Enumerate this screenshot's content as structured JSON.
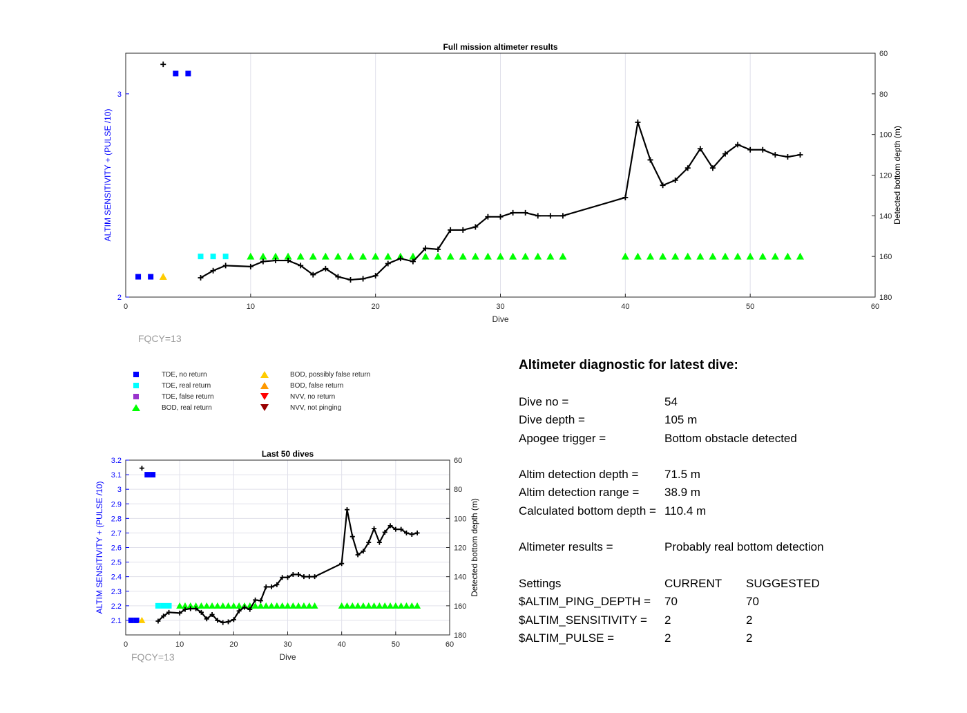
{
  "chart_data": [
    {
      "type": "line",
      "title": "Full mission altimeter results",
      "xlabel": "Dive",
      "ylabel_left": "ALTIM SENSITIVITY + (PULSE /10)",
      "ylabel_right": "Detected bottom depth (m)",
      "xlim": [
        0,
        60
      ],
      "ylim_left": [
        2,
        3.2
      ],
      "ylim_right": [
        60,
        180
      ],
      "right_axis_reversed": true,
      "x_ticks": [
        0,
        10,
        20,
        30,
        40,
        50,
        60
      ],
      "y_left_ticks": [
        2,
        3
      ],
      "y_right_ticks": [
        60,
        80,
        100,
        120,
        140,
        160,
        180
      ],
      "annotation": "FQCY=13",
      "grid": "x",
      "series": [
        {
          "name": "TDE, no return",
          "axis": "left",
          "marker": "square",
          "color": "#0000ff",
          "x": [
            1,
            2,
            4,
            5
          ],
          "y": [
            2.1,
            2.1,
            3.1,
            3.1
          ]
        },
        {
          "name": "TDE, real return",
          "axis": "left",
          "marker": "square",
          "color": "#00ffff",
          "x": [
            6,
            7,
            8
          ],
          "y": [
            2.2,
            2.2,
            2.2
          ]
        },
        {
          "name": "BOD, possibly false return",
          "axis": "left",
          "marker": "triangle-up",
          "color": "#ffcc00",
          "x": [
            3
          ],
          "y": [
            2.1
          ]
        },
        {
          "name": "BOD, real return",
          "axis": "left",
          "marker": "triangle-up",
          "color": "#00ff00",
          "x": [
            10,
            11,
            12,
            13,
            14,
            15,
            16,
            17,
            18,
            19,
            20,
            21,
            22,
            23,
            24,
            25,
            26,
            27,
            28,
            29,
            30,
            31,
            32,
            33,
            34,
            35,
            40,
            41,
            42,
            43,
            44,
            45,
            46,
            47,
            48,
            49,
            50,
            51,
            52,
            53,
            54
          ],
          "y": [
            2.2,
            2.2,
            2.2,
            2.2,
            2.2,
            2.2,
            2.2,
            2.2,
            2.2,
            2.2,
            2.2,
            2.2,
            2.2,
            2.2,
            2.2,
            2.2,
            2.2,
            2.2,
            2.2,
            2.2,
            2.2,
            2.2,
            2.2,
            2.2,
            2.2,
            2.2,
            2.2,
            2.2,
            2.2,
            2.2,
            2.2,
            2.2,
            2.2,
            2.2,
            2.2,
            2.2,
            2.2,
            2.2,
            2.2,
            2.2,
            2.2
          ]
        },
        {
          "name": "",
          "axis": "left",
          "marker": "plus",
          "color": "#000000",
          "x": [
            3
          ],
          "y": [
            3.145
          ]
        },
        {
          "name": "",
          "axis": "right",
          "marker": "plus-line",
          "color": "#000000",
          "x": [
            6,
            7,
            8,
            10,
            11,
            12,
            13,
            14,
            15,
            16,
            17,
            18,
            19,
            20,
            21,
            22,
            23,
            24,
            25,
            26,
            27,
            28,
            29,
            30,
            31,
            32,
            33,
            34,
            35,
            40,
            41,
            42,
            43,
            44,
            45,
            46,
            47,
            48,
            49,
            50,
            51,
            52,
            53,
            54
          ],
          "y": [
            170.5,
            167,
            164.5,
            165,
            162.5,
            162,
            162,
            164.5,
            169,
            166,
            170,
            171.5,
            171,
            169.5,
            163.5,
            161,
            162.5,
            156,
            156.5,
            147,
            147,
            145.5,
            140.5,
            140.5,
            138.5,
            138.5,
            140,
            140,
            140,
            131,
            94,
            112.5,
            125,
            122.5,
            116.5,
            107,
            116.5,
            109.5,
            105,
            107.5,
            107.5,
            110,
            111,
            110
          ]
        }
      ]
    },
    {
      "type": "line",
      "title": "Last 50 dives",
      "xlabel": "Dive",
      "ylabel_left": "ALTIM SENSITIVITY + (PULSE /10)",
      "ylabel_right": "Detected bottom depth (m)",
      "xlim": [
        0,
        60
      ],
      "ylim_left": [
        2,
        3.2
      ],
      "ylim_right": [
        60,
        180
      ],
      "right_axis_reversed": true,
      "x_ticks": [
        0,
        10,
        20,
        30,
        40,
        50,
        60
      ],
      "y_left_ticks": [
        2.1,
        2.2,
        2.3,
        2.4,
        2.5,
        2.6,
        2.7,
        2.8,
        2.9,
        3,
        3.1,
        3.2
      ],
      "y_right_ticks": [
        60,
        80,
        100,
        120,
        140,
        160,
        180
      ],
      "annotation": "FQCY=13",
      "grid": "both",
      "series": [
        {
          "name": "TDE, no return",
          "axis": "left",
          "marker": "square",
          "color": "#0000ff",
          "x": [
            1,
            2,
            4,
            5
          ],
          "y": [
            2.1,
            2.1,
            3.1,
            3.1
          ]
        },
        {
          "name": "TDE, real return",
          "axis": "left",
          "marker": "square",
          "color": "#00ffff",
          "x": [
            6,
            7,
            8
          ],
          "y": [
            2.2,
            2.2,
            2.2
          ]
        },
        {
          "name": "BOD, possibly false return",
          "axis": "left",
          "marker": "triangle-up",
          "color": "#ffcc00",
          "x": [
            3
          ],
          "y": [
            2.1
          ]
        },
        {
          "name": "BOD, real return",
          "axis": "left",
          "marker": "triangle-up",
          "color": "#00ff00",
          "x": [
            10,
            11,
            12,
            13,
            14,
            15,
            16,
            17,
            18,
            19,
            20,
            21,
            22,
            23,
            24,
            25,
            26,
            27,
            28,
            29,
            30,
            31,
            32,
            33,
            34,
            35,
            40,
            41,
            42,
            43,
            44,
            45,
            46,
            47,
            48,
            49,
            50,
            51,
            52,
            53,
            54
          ],
          "y": [
            2.2,
            2.2,
            2.2,
            2.2,
            2.2,
            2.2,
            2.2,
            2.2,
            2.2,
            2.2,
            2.2,
            2.2,
            2.2,
            2.2,
            2.2,
            2.2,
            2.2,
            2.2,
            2.2,
            2.2,
            2.2,
            2.2,
            2.2,
            2.2,
            2.2,
            2.2,
            2.2,
            2.2,
            2.2,
            2.2,
            2.2,
            2.2,
            2.2,
            2.2,
            2.2,
            2.2,
            2.2,
            2.2,
            2.2,
            2.2,
            2.2
          ]
        },
        {
          "name": "",
          "axis": "left",
          "marker": "plus",
          "color": "#000000",
          "x": [
            3
          ],
          "y": [
            3.145
          ]
        },
        {
          "name": "",
          "axis": "right",
          "marker": "plus-line",
          "color": "#000000",
          "x": [
            6,
            7,
            8,
            10,
            11,
            12,
            13,
            14,
            15,
            16,
            17,
            18,
            19,
            20,
            21,
            22,
            23,
            24,
            25,
            26,
            27,
            28,
            29,
            30,
            31,
            32,
            33,
            34,
            35,
            40,
            41,
            42,
            43,
            44,
            45,
            46,
            47,
            48,
            49,
            50,
            51,
            52,
            53,
            54
          ],
          "y": [
            170.5,
            167,
            164.5,
            165,
            162.5,
            162,
            162,
            164.5,
            169,
            166,
            170,
            171.5,
            171,
            169.5,
            163.5,
            161,
            162.5,
            156,
            156.5,
            147,
            147,
            145.5,
            140.5,
            140.5,
            138.5,
            138.5,
            140,
            140,
            140,
            131,
            94,
            112.5,
            125,
            122.5,
            116.5,
            107,
            116.5,
            109.5,
            105,
            107.5,
            107.5,
            110,
            111,
            110
          ]
        }
      ]
    }
  ],
  "legend": [
    {
      "label": "TDE, no return",
      "marker": "square",
      "color": "#0000ff"
    },
    {
      "label": "TDE, real return",
      "marker": "square",
      "color": "#00ffff"
    },
    {
      "label": "TDE, false return",
      "marker": "square",
      "color": "#9933cc"
    },
    {
      "label": "BOD, real return",
      "marker": "triangle-up",
      "color": "#00ff00"
    },
    {
      "label": "BOD, possibly false return",
      "marker": "triangle-up",
      "color": "#ffcc00"
    },
    {
      "label": "BOD, false return",
      "marker": "triangle-up",
      "color": "#ff9900"
    },
    {
      "label": "NVV, no return",
      "marker": "triangle-down",
      "color": "#ff0000"
    },
    {
      "label": "NVV, not pinging",
      "marker": "triangle-down",
      "color": "#990000"
    }
  ],
  "diagnostic": {
    "title": "Altimeter diagnostic for latest dive:",
    "dive_no_label": "Dive no =",
    "dive_no": "54",
    "dive_depth_label": "Dive depth =",
    "dive_depth": "105 m",
    "apogee_label": "Apogee trigger =",
    "apogee": "Bottom obstacle detected",
    "det_depth_label": "Altim detection depth =",
    "det_depth": "71.5 m",
    "det_range_label": "Altim detection range =",
    "det_range": "38.9 m",
    "calc_depth_label": "Calculated bottom depth =",
    "calc_depth": "110.4 m",
    "results_label": "Altimeter results =",
    "results": "Probably real bottom detection",
    "settings_label": "Settings",
    "current_label": "CURRENT",
    "suggested_label": "SUGGESTED",
    "ping_depth_label": "$ALTIM_PING_DEPTH =",
    "ping_depth_current": "70",
    "ping_depth_suggested": "70",
    "sensitivity_label": "$ALTIM_SENSITIVITY =",
    "sensitivity_current": "2",
    "sensitivity_suggested": "2",
    "pulse_label": "$ALTIM_PULSE =",
    "pulse_current": "2",
    "pulse_suggested": "2"
  },
  "colors": {
    "left_axis": "#0000ff",
    "axis": "#262626",
    "grid": "#e0e0ea",
    "annotation": "#9a9a9a"
  }
}
